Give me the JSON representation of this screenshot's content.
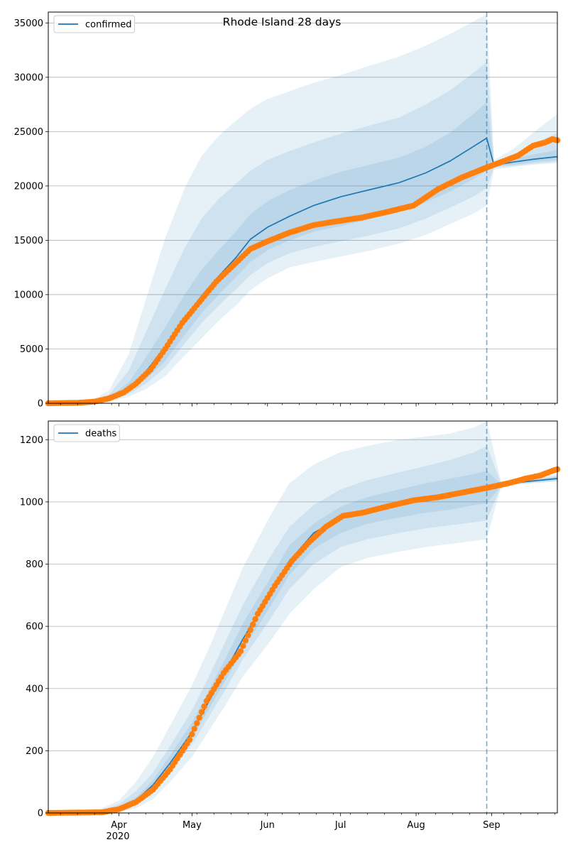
{
  "figure": {
    "title": "Rhode Island 28 days",
    "x_axis": {
      "months": [
        {
          "label": "Apr",
          "date": "2020-04-01"
        },
        {
          "label": "May",
          "date": "2020-05-01"
        },
        {
          "label": "Jun",
          "date": "2020-06-01"
        },
        {
          "label": "Jul",
          "date": "2020-07-01"
        },
        {
          "label": "Aug",
          "date": "2020-08-01"
        },
        {
          "label": "Sep",
          "date": "2020-09-01"
        }
      ],
      "year_label": "2020",
      "range": [
        "2020-03-03",
        "2020-09-28"
      ],
      "forecast_start": "2020-08-30"
    },
    "colors": {
      "model": "#1f77b4",
      "observed": "#ff7f0e",
      "band": "#1f77b4",
      "grid": "#b0b0b0"
    }
  },
  "chart_data": [
    {
      "type": "line",
      "legend": "confirmed",
      "legend_position": "top-left",
      "grid": "horizontal",
      "ylim": [
        0,
        36000
      ],
      "yticks": [
        0,
        5000,
        10000,
        15000,
        20000,
        25000,
        30000,
        35000
      ],
      "model": {
        "x": [
          "2020-03-03",
          "2020-03-20",
          "2020-03-28",
          "2020-04-05",
          "2020-04-12",
          "2020-04-20",
          "2020-04-28",
          "2020-05-05",
          "2020-05-12",
          "2020-05-19",
          "2020-05-25",
          "2020-06-01",
          "2020-06-10",
          "2020-06-20",
          "2020-07-01",
          "2020-07-12",
          "2020-07-25",
          "2020-08-05",
          "2020-08-15",
          "2020-08-25",
          "2020-08-30",
          "2020-09-02",
          "2020-09-10",
          "2020-09-18",
          "2020-09-28"
        ],
        "y": [
          0,
          50,
          400,
          1300,
          2900,
          5200,
          7800,
          9900,
          11700,
          13400,
          15100,
          16200,
          17200,
          18200,
          19000,
          19600,
          20300,
          21200,
          22300,
          23700,
          24400,
          21900,
          22200,
          22450,
          22700
        ],
        "bands": [
          {
            "lower": [
              0,
              20,
              150,
              600,
              1300,
              2500,
              4400,
              6000,
              7600,
              9000,
              10400,
              11500,
              12500,
              13000,
              13500,
              14000,
              14700,
              15500,
              16500,
              17500,
              18200,
              21500,
              21750,
              21950,
              22100
            ],
            "upper": [
              0,
              120,
              1200,
              4500,
              9500,
              15200,
              19800,
              22800,
              24600,
              26000,
              27100,
              28000,
              28700,
              29500,
              30200,
              31000,
              31900,
              32900,
              34000,
              35200,
              35800,
              22400,
              23400,
              24900,
              26600
            ]
          },
          {
            "lower": [
              0,
              30,
              230,
              850,
              1800,
              3300,
              5500,
              7400,
              9000,
              10500,
              11800,
              12900,
              13800,
              14400,
              14900,
              15400,
              16100,
              17000,
              18000,
              19100,
              19800,
              21700,
              21850,
              22050,
              22250
            ],
            "upper": [
              0,
              90,
              800,
              3000,
              6500,
              10500,
              14300,
              17000,
              18800,
              20200,
              21400,
              22400,
              23200,
              24000,
              24800,
              25500,
              26300,
              27500,
              28800,
              30500,
              31400,
              22200,
              22900,
              23800,
              24900
            ]
          },
          {
            "lower": [
              0,
              40,
              300,
              1000,
              2200,
              3900,
              6300,
              8300,
              10000,
              11600,
              13000,
              14100,
              15000,
              15800,
              16300,
              16900,
              17600,
              18500,
              19500,
              20700,
              21400,
              21800,
              21950,
              22200,
              22400
            ],
            "upper": [
              0,
              70,
              550,
              1900,
              4200,
              7000,
              10000,
              12300,
              14100,
              15800,
              17400,
              18600,
              19600,
              20500,
              21300,
              21900,
              22600,
              23600,
              24900,
              26700,
              27700,
              22050,
              22500,
              22900,
              23300
            ]
          }
        ]
      },
      "observed": {
        "x": [
          "2020-03-03",
          "2020-03-15",
          "2020-03-22",
          "2020-03-28",
          "2020-04-03",
          "2020-04-08",
          "2020-04-14",
          "2020-04-20",
          "2020-04-27",
          "2020-05-04",
          "2020-05-11",
          "2020-05-18",
          "2020-05-25",
          "2020-06-01",
          "2020-06-10",
          "2020-06-20",
          "2020-07-01",
          "2020-07-10",
          "2020-07-20",
          "2020-07-31",
          "2020-08-10",
          "2020-08-20",
          "2020-08-30",
          "2020-09-05",
          "2020-09-12",
          "2020-09-18",
          "2020-09-23",
          "2020-09-26",
          "2020-09-28"
        ],
        "y": [
          0,
          40,
          150,
          450,
          1000,
          1800,
          3100,
          5000,
          7400,
          9300,
          11200,
          12700,
          14200,
          14900,
          15700,
          16400,
          16800,
          17100,
          17600,
          18200,
          19700,
          20800,
          21700,
          22200,
          22800,
          23700,
          24000,
          24300,
          24200
        ]
      }
    },
    {
      "type": "line",
      "legend": "deaths",
      "legend_position": "top-left",
      "grid": "horizontal",
      "ylim": [
        0,
        1260
      ],
      "yticks": [
        0,
        200,
        400,
        600,
        800,
        1000,
        1200
      ],
      "model": {
        "x": [
          "2020-03-03",
          "2020-03-25",
          "2020-04-01",
          "2020-04-08",
          "2020-04-15",
          "2020-04-22",
          "2020-05-01",
          "2020-05-08",
          "2020-05-15",
          "2020-05-22",
          "2020-06-01",
          "2020-06-10",
          "2020-06-20",
          "2020-07-01",
          "2020-07-12",
          "2020-07-25",
          "2020-08-05",
          "2020-08-15",
          "2020-08-25",
          "2020-08-30",
          "2020-09-05",
          "2020-09-15",
          "2020-09-28"
        ],
        "y": [
          0,
          5,
          15,
          40,
          90,
          160,
          260,
          360,
          460,
          560,
          690,
          810,
          900,
          950,
          975,
          995,
          1010,
          1020,
          1035,
          1045,
          1055,
          1065,
          1075
        ],
        "bands": [
          {
            "lower": [
              0,
              0,
              4,
              15,
              45,
              100,
              180,
              265,
              350,
              440,
              540,
              640,
              720,
              790,
              820,
              840,
              855,
              865,
              875,
              880,
              1052,
              1058,
              1065
            ],
            "upper": [
              0,
              15,
              40,
              100,
              180,
              280,
              410,
              530,
              660,
              790,
              940,
              1060,
              1120,
              1160,
              1180,
              1200,
              1210,
              1220,
              1240,
              1260,
              1060,
              1075,
              1090
            ]
          },
          {
            "lower": [
              0,
              2,
              8,
              25,
              65,
              130,
              220,
              310,
              400,
              495,
              610,
              720,
              800,
              855,
              880,
              900,
              915,
              925,
              935,
              940,
              1053,
              1060,
              1068
            ],
            "upper": [
              0,
              10,
              28,
              70,
              130,
              215,
              330,
              440,
              555,
              670,
              810,
              920,
              990,
              1040,
              1070,
              1095,
              1115,
              1135,
              1160,
              1180,
              1058,
              1070,
              1084
            ]
          },
          {
            "lower": [
              0,
              3,
              11,
              32,
              78,
              145,
              240,
              335,
              430,
              525,
              650,
              765,
              850,
              900,
              930,
              950,
              965,
              975,
              990,
              995,
              1054,
              1062,
              1070
            ],
            "upper": [
              0,
              7,
              20,
              50,
              105,
              185,
              290,
              395,
              500,
              610,
              740,
              860,
              930,
              985,
              1015,
              1040,
              1060,
              1075,
              1090,
              1100,
              1056,
              1068,
              1080
            ]
          }
        ]
      },
      "observed": {
        "x": [
          "2020-03-03",
          "2020-03-25",
          "2020-04-01",
          "2020-04-08",
          "2020-04-15",
          "2020-04-22",
          "2020-04-30",
          "2020-05-07",
          "2020-05-14",
          "2020-05-21",
          "2020-05-28",
          "2020-06-04",
          "2020-06-11",
          "2020-06-18",
          "2020-06-25",
          "2020-07-02",
          "2020-07-10",
          "2020-07-20",
          "2020-07-31",
          "2020-08-10",
          "2020-08-20",
          "2020-08-30",
          "2020-09-08",
          "2020-09-15",
          "2020-09-21",
          "2020-09-26",
          "2020-09-28"
        ],
        "y": [
          0,
          2,
          12,
          35,
          75,
          140,
          235,
          360,
          450,
          520,
          640,
          730,
          810,
          870,
          920,
          955,
          965,
          985,
          1005,
          1015,
          1030,
          1045,
          1060,
          1075,
          1085,
          1100,
          1105
        ]
      }
    }
  ]
}
